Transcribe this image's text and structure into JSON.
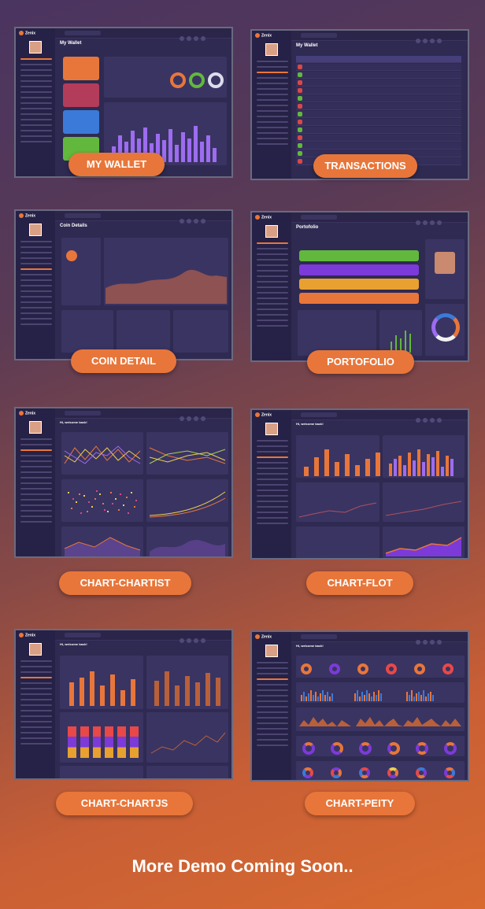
{
  "demos": [
    {
      "id": "my-wallet",
      "label": "MY WALLET",
      "title": "My Wallet"
    },
    {
      "id": "transactions",
      "label": "TRANSACTIONS",
      "title": "My Wallet"
    },
    {
      "id": "coin-detail",
      "label": "COIN DETAIL",
      "title": "Coin Details"
    },
    {
      "id": "portofolio",
      "label": "PORTOFOLIO",
      "title": "Portofolio"
    },
    {
      "id": "chart-chartist",
      "label": "CHART-CHARTIST",
      "title": "Hi, welcome back!"
    },
    {
      "id": "chart-flot",
      "label": "CHART-FLOT",
      "title": "Hi, welcome back!"
    },
    {
      "id": "chart-chartjs",
      "label": "CHART-CHARTJS",
      "title": "Hi, welcome back!"
    },
    {
      "id": "chart-peity",
      "label": "CHART-PEITY",
      "title": "Hi, welcome back!"
    }
  ],
  "brand": "Zenix",
  "footer": "More Demo Coming Soon..",
  "colors": {
    "accent": "#e8763a",
    "panel": "#3a3462",
    "sidebar": "#262146",
    "bar_purple": "#9d6cf0"
  }
}
